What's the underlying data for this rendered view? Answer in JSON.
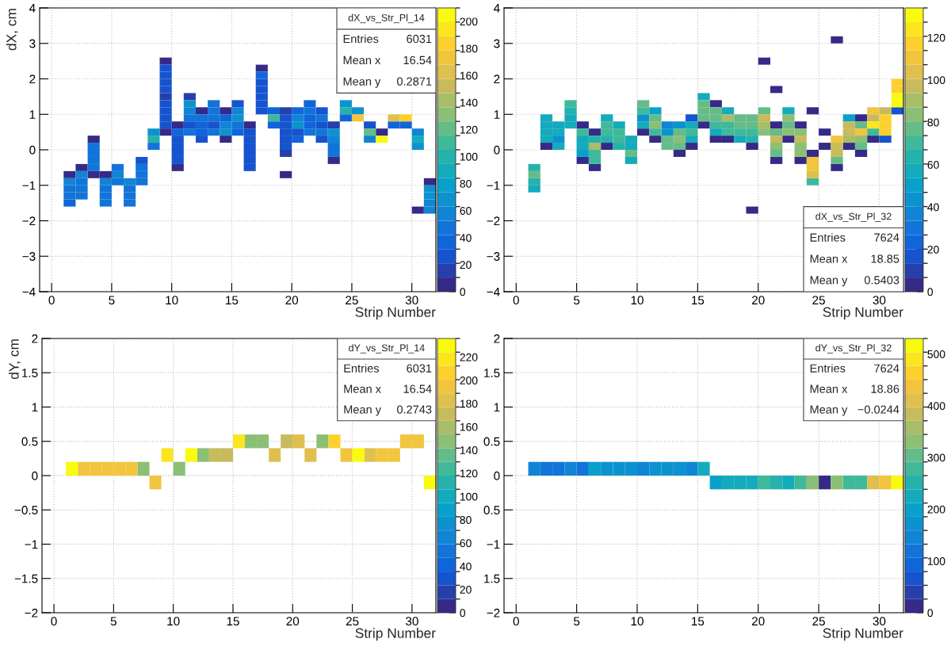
{
  "chart_data": [
    {
      "type": "scatter",
      "xlabel": "Strip Number",
      "ylabel": "dX, cm",
      "annotations": [
        "dX_vs_Str_Pl_14",
        "Entries 6031",
        "Mean x 16.54",
        "Mean y 0.2871"
      ],
      "xlim": [
        -1,
        32
      ],
      "ylim": [
        -4,
        4
      ],
      "xticks": [
        0,
        5,
        10,
        15,
        20,
        25,
        30
      ],
      "yticks": [
        {
          "value": -4,
          "label": "−4"
        },
        {
          "value": -3,
          "label": "−3"
        },
        {
          "value": -2,
          "label": "−2"
        },
        {
          "value": -1,
          "label": "−1"
        },
        0,
        1,
        2,
        3,
        4
      ],
      "clim": [
        0,
        210
      ],
      "cticks": [
        0,
        20,
        40,
        60,
        80,
        100,
        120,
        140,
        160,
        180,
        200
      ],
      "grid": true,
      "marker": "square",
      "series": [
        {
          "x": [
            9.5,
            17.5,
            12.5,
            14.5,
            10.5,
            16.5,
            9.5,
            27.5,
            3.5,
            14.5,
            23.5,
            2.5,
            10.5,
            1.5,
            3.5,
            4.5,
            19.5,
            31.5,
            30.5
          ],
          "values": [
            2.5,
            2.3,
            1.1,
            1.1,
            0.7,
            0.7,
            0.5,
            0.5,
            0.3,
            0.3,
            -0.3,
            -0.5,
            -0.5,
            -0.7,
            -0.7,
            -0.7,
            -0.7,
            -0.9,
            -1.7
          ],
          "cvalues": [
            5,
            5,
            5,
            5,
            5,
            5,
            5,
            5,
            5,
            5,
            5,
            5,
            5,
            5,
            5,
            5,
            5,
            5,
            5
          ]
        },
        {
          "x": [
            19.5,
            23.5,
            19.5
          ],
          "values": [
            1.1,
            0.7,
            -0.1
          ],
          "cvalues": [
            15,
            15,
            15
          ]
        },
        {
          "x": [
            9.5,
            11.5
          ],
          "values": [
            1.5,
            1.5
          ],
          "cvalues": [
            20,
            20
          ]
        },
        {
          "x": [
            9.5,
            9.5,
            17.5,
            9.5,
            17.5,
            17.5,
            9.5,
            15.5,
            17.5,
            9.5,
            9.5,
            19.5,
            9.5,
            19.5,
            26.5,
            10.5,
            22.5,
            10.5,
            10.5,
            16.5
          ],
          "values": [
            2.1,
            1.9,
            1.9,
            1.7,
            1.7,
            1.5,
            1.3,
            1.3,
            1.3,
            1.1,
            0.9,
            0.9,
            0.7,
            0.7,
            0.7,
            0.3,
            0.3,
            0.1,
            -0.3,
            -0.5
          ],
          "cvalues": [
            25,
            25,
            25,
            25,
            25,
            25,
            25,
            25,
            25,
            25,
            25,
            25,
            25,
            25,
            25,
            25,
            25,
            25,
            25,
            25
          ]
        },
        {
          "x": [
            9.5,
            17.5,
            22.5,
            11.5,
            13.5,
            22.5,
            16.5,
            19.5,
            20.5,
            12.5,
            16.5,
            19.5,
            16.5,
            19.5,
            10.5,
            16.5,
            7.5,
            16.5
          ],
          "values": [
            2.3,
            1.1,
            1.1,
            0.7,
            0.7,
            0.7,
            0.5,
            0.5,
            0.5,
            0.3,
            0.3,
            0.3,
            0.1,
            0.1,
            -0.1,
            -0.1,
            -0.3,
            -0.3
          ],
          "cvalues": [
            30,
            30,
            30,
            30,
            30,
            30,
            30,
            30,
            30,
            30,
            30,
            30,
            30,
            30,
            30,
            30,
            30,
            30
          ]
        },
        {
          "x": [
            17.5,
            20.5,
            21.5,
            10.5,
            15.5,
            20.5
          ],
          "values": [
            2.1,
            1.1,
            0.9,
            0.5,
            0.5,
            0.3
          ],
          "cvalues": [
            35,
            35,
            35,
            35,
            35,
            35
          ]
        },
        {
          "x": [
            21.5,
            18.5,
            14.5,
            24.5,
            12.5,
            18.5,
            21.5,
            28.5,
            29.5,
            12.5,
            1.5
          ],
          "values": [
            1.3,
            1.1,
            0.9,
            0.9,
            0.7,
            0.7,
            0.7,
            0.7,
            0.7,
            0.5,
            -1.5
          ],
          "cvalues": [
            40,
            40,
            40,
            40,
            40,
            40,
            40,
            40,
            40,
            40,
            40
          ]
        },
        {
          "x": [
            13.5,
            13.5,
            21.5,
            15.5,
            13.5,
            21.5,
            22.5,
            23.5,
            3.5,
            7.5,
            7.5,
            2.5,
            5.5,
            7.5,
            2.5,
            4.5,
            6.5,
            2.5,
            4.5,
            6.5,
            4.5,
            6.5
          ],
          "values": [
            1.3,
            1.1,
            1.1,
            0.7,
            0.5,
            0.5,
            0.5,
            -0.1,
            -0.5,
            -0.5,
            -0.7,
            -0.9,
            -0.9,
            -0.9,
            -1.1,
            -1.1,
            -1.1,
            -1.3,
            -1.3,
            -1.3,
            -1.5,
            -1.5
          ],
          "cvalues": [
            45,
            45,
            45,
            45,
            45,
            45,
            45,
            45,
            45,
            45,
            45,
            45,
            45,
            45,
            45,
            45,
            45,
            45,
            45,
            45,
            45,
            45
          ]
        },
        {
          "x": [
            11.5,
            12.5,
            13.5,
            22.5,
            11.5,
            3.5,
            8.5,
            23.5,
            3.5,
            3.5,
            5.5,
            1.5,
            1.5
          ],
          "values": [
            0.9,
            0.9,
            0.9,
            0.9,
            0.5,
            0.1,
            0.1,
            0.1,
            -0.1,
            -0.3,
            -0.5,
            -1.1,
            -1.3
          ],
          "cvalues": [
            50,
            50,
            50,
            50,
            50,
            50,
            50,
            50,
            50,
            50,
            50,
            50,
            50
          ]
        },
        {
          "x": [
            11.5,
            15.5,
            23.5,
            5.5,
            31.5
          ],
          "values": [
            1.1,
            1.1,
            0.3,
            -0.7,
            -1.7
          ],
          "cvalues": [
            55,
            55,
            55,
            55,
            55
          ]
        },
        {
          "x": [
            20.5,
            14.5,
            30.5,
            26.5,
            2.5,
            1.5,
            4.5,
            6.5,
            31.5
          ],
          "values": [
            0.9,
            0.7,
            0.5,
            0.3,
            -0.7,
            -0.9,
            -0.9,
            -0.9,
            -1.5
          ],
          "cvalues": [
            60,
            60,
            60,
            60,
            60,
            60,
            60,
            60,
            60
          ]
        },
        {
          "x": [
            15.5,
            20.5,
            14.5,
            23.5,
            31.5,
            31.5
          ],
          "values": [
            0.9,
            0.7,
            0.5,
            0.5,
            -1.1,
            -1.3
          ],
          "cvalues": [
            65,
            65,
            65,
            65,
            65,
            65
          ]
        },
        {
          "x": [
            11.5,
            24.5,
            25.5,
            8.5,
            30.5
          ],
          "values": [
            1.3,
            1.3,
            1.1,
            0.5,
            0.1
          ],
          "cvalues": [
            70,
            70,
            70,
            70,
            70
          ]
        },
        {
          "x": [
            30.5
          ],
          "values": [
            0.3
          ],
          "cvalues": [
            85
          ]
        },
        {
          "x": [
            24.5,
            8.5
          ],
          "values": [
            1.1,
            0.3
          ],
          "cvalues": [
            100,
            100
          ]
        },
        {
          "x": [
            18.5
          ],
          "values": [
            0.9
          ],
          "cvalues": [
            115
          ]
        },
        {
          "x": [
            26.5
          ],
          "values": [
            0.5
          ],
          "cvalues": [
            120
          ]
        },
        {
          "x": [
            28.5
          ],
          "values": [
            0.9
          ],
          "cvalues": [
            165
          ]
        },
        {
          "x": [
            25.5
          ],
          "values": [
            0.9
          ],
          "cvalues": [
            175
          ]
        },
        {
          "x": [
            29.5
          ],
          "values": [
            0.9
          ],
          "cvalues": [
            180
          ]
        },
        {
          "x": [
            27.5
          ],
          "values": [
            0.3
          ],
          "cvalues": [
            205
          ]
        }
      ]
    },
    {
      "type": "scatter",
      "xlabel": "Strip Number",
      "annotations": [
        "dX_vs_Str_Pl_32",
        "Entries 7624",
        "Mean x 18.85",
        "Mean y 0.5403"
      ],
      "xlim": [
        -1,
        32
      ],
      "ylim": [
        -4,
        4
      ],
      "xticks": [
        0,
        5,
        10,
        15,
        20,
        25,
        30
      ],
      "yticks": [
        {
          "value": -4,
          "label": "−4"
        },
        {
          "value": -3,
          "label": "−3"
        },
        {
          "value": -2,
          "label": "−2"
        },
        {
          "value": -1,
          "label": "−1"
        },
        0,
        1,
        2,
        3,
        4
      ],
      "clim": [
        0,
        134
      ],
      "cticks": [
        0,
        20,
        40,
        60,
        80,
        100,
        120
      ],
      "grid": true,
      "marker": "square",
      "series": [
        {
          "x": [
            26.5,
            20.5,
            21.5,
            16.5,
            24.5,
            28.5,
            5.5,
            15.5,
            21.5,
            23.5,
            6.5,
            10.5,
            25.5,
            11.5,
            16.5,
            17.5,
            22.5,
            29.5,
            2.5,
            7.5,
            14.5,
            19.5,
            25.5,
            27.5,
            13.5,
            24.5,
            28.5,
            5.5,
            21.5,
            23.5,
            6.5,
            26.5,
            19.5
          ],
          "values": [
            3.1,
            2.5,
            1.7,
            1.3,
            1.1,
            0.9,
            0.7,
            0.7,
            0.7,
            0.7,
            0.5,
            0.5,
            0.5,
            0.3,
            0.3,
            0.3,
            0.3,
            0.3,
            0.1,
            0.1,
            0.1,
            0.1,
            0.1,
            0.1,
            -0.1,
            -0.1,
            -0.1,
            -0.3,
            -0.3,
            -0.3,
            -0.5,
            -0.5,
            -1.7
          ],
          "cvalues": [
            5,
            5,
            5,
            5,
            5,
            5,
            5,
            5,
            5,
            5,
            5,
            5,
            5,
            5,
            5,
            5,
            5,
            5,
            5,
            5,
            5,
            5,
            5,
            5,
            5,
            5,
            5,
            5,
            5,
            5,
            5,
            5,
            5
          ]
        },
        {
          "x": [
            31.5,
            14.5,
            30.5
          ],
          "values": [
            1.1,
            0.9,
            0.3
          ],
          "cvalues": [
            20,
            20,
            20
          ]
        },
        {
          "x": [
            12.5
          ],
          "values": [
            0.7
          ],
          "cvalues": [
            40
          ]
        },
        {
          "x": [
            10.5,
            13.5,
            12.5,
            3.5
          ],
          "values": [
            0.9,
            0.7,
            0.5,
            0.3
          ],
          "cvalues": [
            45,
            45,
            45,
            45
          ]
        },
        {
          "x": [
            11.5,
            27.5,
            5.5
          ],
          "values": [
            1.1,
            0.9,
            -0.1
          ],
          "cvalues": [
            50,
            50,
            50
          ]
        },
        {
          "x": [
            22.5,
            2.5,
            2.5,
            3.5,
            10.5,
            14.5,
            2.5,
            3.5,
            16.5,
            2.5,
            9.5,
            18.5,
            3.5,
            5.5,
            9.5,
            9.5,
            1.5
          ],
          "values": [
            1.1,
            0.9,
            0.7,
            0.7,
            0.7,
            0.7,
            0.5,
            0.5,
            0.5,
            0.3,
            0.3,
            0.3,
            0.1,
            0.1,
            0.1,
            -0.3,
            -1.1
          ],
          "cvalues": [
            55,
            55,
            55,
            55,
            55,
            55,
            55,
            55,
            55,
            55,
            55,
            55,
            55,
            55,
            55,
            55,
            55
          ]
        },
        {
          "x": [
            15.5,
            17.5,
            4.5,
            7.5,
            4.5,
            8.5,
            5.5,
            14.5
          ],
          "values": [
            1.5,
            1.1,
            0.9,
            0.9,
            0.7,
            0.7,
            0.3,
            0.3
          ],
          "cvalues": [
            60,
            60,
            60,
            60,
            60,
            60,
            60,
            60
          ]
        },
        {
          "x": [
            4.5,
            6.5,
            7.5,
            19.5,
            8.5,
            1.5,
            1.5
          ],
          "values": [
            1.1,
            0.3,
            0.3,
            0.3,
            0.1,
            -0.5,
            -0.9
          ],
          "cvalues": [
            65,
            65,
            65,
            65,
            65,
            65,
            65
          ]
        },
        {
          "x": [
            4.5,
            10.5,
            7.5,
            16.5,
            17.5,
            5.5,
            7.5,
            8.5,
            11.5,
            14.5,
            17.5,
            18.5,
            19.5,
            29.5,
            8.5,
            6.5,
            6.5,
            24.5
          ],
          "values": [
            1.3,
            1.1,
            0.7,
            0.7,
            0.7,
            0.5,
            0.5,
            0.5,
            0.5,
            0.5,
            0.5,
            0.5,
            0.5,
            0.5,
            0.3,
            -0.1,
            -0.3,
            -0.9
          ],
          "cvalues": [
            70,
            70,
            70,
            70,
            70,
            70,
            70,
            70,
            70,
            70,
            70,
            70,
            70,
            70,
            70,
            70,
            70,
            70
          ]
        },
        {
          "x": [
            10.5,
            15.5,
            15.5,
            16.5,
            11.5,
            15.5,
            16.5,
            19.5,
            22.5,
            21.5,
            12.5,
            12.5,
            28.5,
            26.5
          ],
          "values": [
            1.3,
            1.3,
            1.1,
            1.1,
            0.9,
            0.9,
            0.9,
            0.9,
            0.7,
            0.5,
            0.3,
            0.1,
            0.1,
            -0.3
          ],
          "cvalues": [
            75,
            75,
            75,
            75,
            75,
            75,
            75,
            75,
            75,
            75,
            75,
            75,
            75,
            75
          ]
        },
        {
          "x": [
            20.5,
            18.5,
            18.5,
            19.5,
            28.5,
            13.5,
            13.5,
            9.5,
            21.5,
            1.5
          ],
          "values": [
            1.1,
            0.9,
            0.7,
            0.7,
            0.7,
            0.5,
            0.1,
            -0.1,
            -0.1,
            -0.7
          ],
          "cvalues": [
            80,
            80,
            80,
            80,
            80,
            80,
            80,
            80,
            80,
            80
          ]
        },
        {
          "x": [
            22.5,
            11.5,
            20.5,
            22.5,
            23.5,
            13.5,
            28.5,
            21.5,
            23.5,
            23.5
          ],
          "values": [
            0.9,
            0.7,
            0.5,
            0.5,
            0.5,
            0.3,
            0.3,
            0.1,
            0.1,
            -0.1
          ],
          "cvalues": [
            85,
            85,
            85,
            85,
            85,
            85,
            85,
            85,
            85,
            85
          ]
        },
        {
          "x": [
            17.5,
            20.5,
            27.5,
            6.5
          ],
          "values": [
            0.9,
            0.7,
            0.3,
            0.1
          ],
          "cvalues": [
            90,
            90,
            90,
            90
          ]
        },
        {
          "x": [
            20.5,
            29.5,
            21.5,
            23.5,
            26.5
          ],
          "values": [
            0.9,
            0.9,
            0.3,
            0.3,
            -0.1
          ],
          "cvalues": [
            95,
            95,
            95,
            95,
            95
          ]
        },
        {
          "x": [
            30.5,
            27.5,
            27.5,
            26.5
          ],
          "values": [
            1.1,
            0.7,
            0.5,
            0.1
          ],
          "cvalues": [
            100,
            100,
            100,
            100
          ]
        },
        {
          "x": [
            24.5
          ],
          "values": [
            -0.7
          ],
          "cvalues": [
            105
          ]
        },
        {
          "x": [
            29.5,
            28.5,
            26.5,
            24.5,
            24.5
          ],
          "values": [
            1.1,
            0.5,
            0.3,
            -0.3,
            -0.5
          ],
          "cvalues": [
            110,
            110,
            110,
            110,
            110
          ]
        },
        {
          "x": [
            31.5,
            30.5,
            30.5,
            30.5
          ],
          "values": [
            1.9,
            0.9,
            0.7,
            0.5
          ],
          "cvalues": [
            115,
            115,
            115,
            115
          ]
        },
        {
          "x": [
            31.5
          ],
          "values": [
            1.7
          ],
          "cvalues": [
            120
          ]
        },
        {
          "x": [
            29.5
          ],
          "values": [
            0.7
          ],
          "cvalues": [
            125
          ]
        },
        {
          "x": [
            31.5,
            31.5
          ],
          "values": [
            1.5,
            1.3
          ],
          "cvalues": [
            130,
            130
          ]
        }
      ]
    },
    {
      "type": "scatter",
      "xlabel": "Strip Number",
      "ylabel": "dY, cm",
      "annotations": [
        "dY_vs_Str_Pl_14",
        "Entries 6031",
        "Mean x 16.54",
        "Mean y 0.2743"
      ],
      "xlim": [
        -1,
        32
      ],
      "ylim": [
        -2,
        2
      ],
      "xticks": [
        0,
        5,
        10,
        15,
        20,
        25,
        30
      ],
      "yticks": [
        {
          "value": -2,
          "label": "−2"
        },
        {
          "value": -1.5,
          "label": "−1.5"
        },
        {
          "value": -1,
          "label": "−1"
        },
        {
          "value": -0.5,
          "label": "−0.5"
        },
        0,
        0.5,
        1,
        1.5,
        2
      ],
      "clim": [
        0,
        236
      ],
      "cticks": [
        0,
        20,
        40,
        60,
        80,
        100,
        120,
        140,
        160,
        180,
        200,
        220
      ],
      "grid": true,
      "marker": "square",
      "series": [
        {
          "x": [
            16.5,
            17.5,
            22.5,
            12.5,
            7.5,
            10.5
          ],
          "values": [
            0.5,
            0.5,
            0.5,
            0.3,
            0.1,
            0.1
          ],
          "cvalues": [
            150,
            150,
            150,
            150,
            150,
            150
          ]
        },
        {
          "x": [
            19.5,
            13.5,
            14.5
          ],
          "values": [
            0.5,
            0.3,
            0.3
          ],
          "cvalues": [
            175,
            175,
            175
          ]
        },
        {
          "x": [
            20.5,
            18.5,
            21.5,
            26.5
          ],
          "values": [
            0.5,
            0.3,
            0.3,
            0.3
          ],
          "cvalues": [
            185,
            185,
            185,
            185
          ]
        },
        {
          "x": [
            3.5,
            5.5,
            6.5
          ],
          "values": [
            0.1,
            0.1,
            0.1
          ],
          "cvalues": [
            190,
            190,
            190
          ]
        },
        {
          "x": [
            29.5,
            30.5,
            24.5,
            27.5,
            28.5,
            2.5,
            4.5,
            8.5
          ],
          "values": [
            0.5,
            0.5,
            0.3,
            0.3,
            0.3,
            0.1,
            0.1,
            -0.1
          ],
          "cvalues": [
            200,
            200,
            200,
            200,
            200,
            200,
            200,
            200
          ]
        },
        {
          "x": [
            23.5
          ],
          "values": [
            0.5
          ],
          "cvalues": [
            205
          ]
        },
        {
          "x": [
            15.5,
            9.5
          ],
          "values": [
            0.5,
            0.3
          ],
          "cvalues": [
            215,
            215
          ]
        },
        {
          "x": [
            11.5,
            25.5,
            31.5
          ],
          "values": [
            0.3,
            0.3,
            -0.1
          ],
          "cvalues": [
            225,
            225,
            225
          ]
        },
        {
          "x": [
            1.5
          ],
          "values": [
            0.1
          ],
          "cvalues": [
            230
          ]
        }
      ]
    },
    {
      "type": "scatter",
      "xlabel": "Strip Number",
      "annotations": [
        "dY_vs_Str_Pl_32",
        "Entries 7624",
        "Mean x 18.86",
        "Mean y −0.0244"
      ],
      "xlim": [
        -1,
        32
      ],
      "ylim": [
        -2,
        2
      ],
      "xticks": [
        0,
        5,
        10,
        15,
        20,
        25,
        30
      ],
      "yticks": [
        {
          "value": -2,
          "label": "−2"
        },
        {
          "value": -1.5,
          "label": "1.5"
        },
        {
          "value": -1,
          "label": "−1"
        },
        {
          "value": -0.5,
          "label": "0.5"
        },
        0,
        0.5,
        1,
        1.5,
        2
      ],
      "clim": [
        0,
        530
      ],
      "cticks": [
        0,
        100,
        200,
        300,
        400,
        500
      ],
      "grid": true,
      "marker": "square",
      "series": [
        {
          "x": [
            25.5
          ],
          "values": [
            -0.1
          ],
          "cvalues": [
            15
          ]
        },
        {
          "x": [
            2.5,
            3.5
          ],
          "values": [
            0.1,
            0.1
          ],
          "cvalues": [
            115,
            115
          ]
        },
        {
          "x": [
            5.5
          ],
          "values": [
            0.1
          ],
          "cvalues": [
            130
          ]
        },
        {
          "x": [
            14.5
          ],
          "values": [
            0.1
          ],
          "cvalues": [
            135
          ]
        },
        {
          "x": [
            4.5
          ],
          "values": [
            0.1
          ],
          "cvalues": [
            145
          ]
        },
        {
          "x": [
            10.5
          ],
          "values": [
            0.1
          ],
          "cvalues": [
            150
          ]
        },
        {
          "x": [
            1.5
          ],
          "values": [
            0.1
          ],
          "cvalues": [
            155
          ]
        },
        {
          "x": [
            7.5,
            8.5,
            9.5,
            12.5
          ],
          "values": [
            0.1,
            0.1,
            0.1,
            0.1
          ],
          "cvalues": [
            160,
            160,
            160,
            160
          ]
        },
        {
          "x": [
            11.5,
            13.5
          ],
          "values": [
            0.1,
            0.1
          ],
          "cvalues": [
            185,
            185
          ]
        },
        {
          "x": [
            6.5
          ],
          "values": [
            0.1
          ],
          "cvalues": [
            190
          ]
        },
        {
          "x": [
            16.5
          ],
          "values": [
            -0.1
          ],
          "cvalues": [
            200
          ]
        },
        {
          "x": [
            17.5,
            18.5,
            19.5
          ],
          "values": [
            -0.1,
            -0.1,
            -0.1
          ],
          "cvalues": [
            215,
            215,
            215
          ]
        },
        {
          "x": [
            22.5
          ],
          "values": [
            -0.1
          ],
          "cvalues": [
            220
          ]
        },
        {
          "x": [
            15.5
          ],
          "values": [
            0.1
          ],
          "cvalues": [
            230
          ]
        },
        {
          "x": [
            21.5
          ],
          "values": [
            -0.1
          ],
          "cvalues": [
            250
          ]
        },
        {
          "x": [
            20.5,
            23.5,
            27.5,
            28.5
          ],
          "values": [
            -0.1,
            -0.1,
            -0.1,
            -0.1
          ],
          "cvalues": [
            290,
            290,
            290,
            290
          ]
        },
        {
          "x": [
            24.5,
            26.5
          ],
          "values": [
            -0.1,
            -0.1
          ],
          "cvalues": [
            340,
            340
          ]
        },
        {
          "x": [
            29.5
          ],
          "values": [
            -0.1
          ],
          "cvalues": [
            400
          ]
        },
        {
          "x": [
            30.5
          ],
          "values": [
            -0.1
          ],
          "cvalues": [
            440
          ]
        },
        {
          "x": [
            31.5
          ],
          "values": [
            -0.1
          ],
          "cvalues": [
            520
          ]
        }
      ]
    }
  ]
}
